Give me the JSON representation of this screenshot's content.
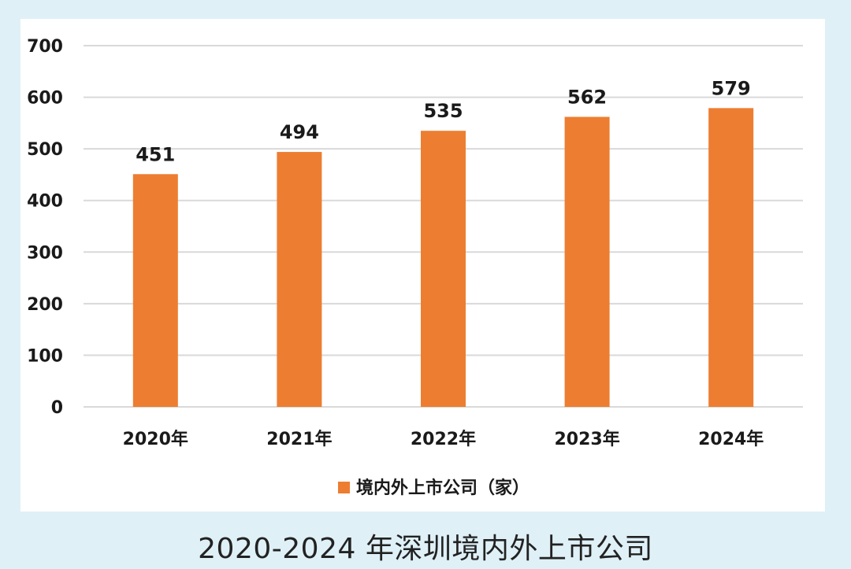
{
  "colors": {
    "background": "#dff0f7",
    "panel": "#ffffff",
    "bar": "#ed7d31",
    "gridline": "#d9d9d9",
    "text": "#1a1a1a"
  },
  "caption": "2020-2024 年深圳境内外上市公司",
  "chart_data": {
    "type": "bar",
    "categories": [
      "2020年",
      "2021年",
      "2022年",
      "2023年",
      "2024年"
    ],
    "series": [
      {
        "name": "境内外上市公司（家）",
        "values": [
          451,
          494,
          535,
          562,
          579
        ]
      }
    ],
    "data_labels": [
      "451",
      "494",
      "535",
      "562",
      "579"
    ],
    "y_ticks": [
      "0",
      "100",
      "200",
      "300",
      "400",
      "500",
      "600",
      "700"
    ],
    "ylim": [
      0,
      700
    ],
    "ytick_step": 100,
    "grid": true,
    "legend": "bottom-center",
    "title": "",
    "xlabel": "",
    "ylabel": ""
  }
}
